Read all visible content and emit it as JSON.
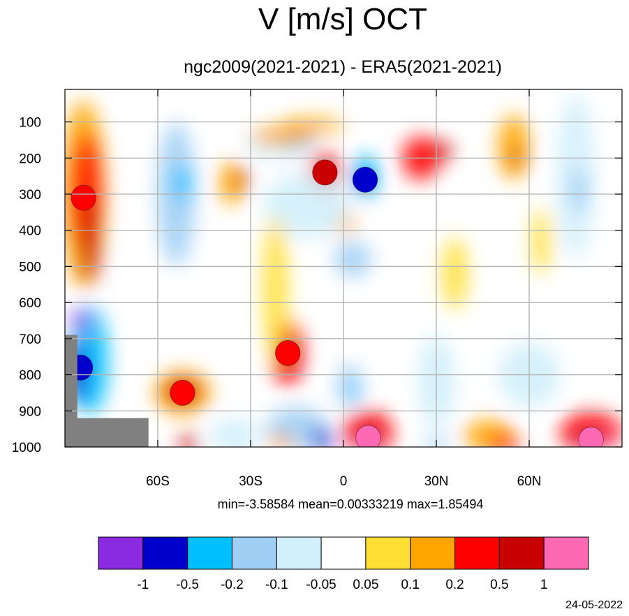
{
  "chart_data": {
    "type": "heatmap",
    "title": "V [m/s] OCT",
    "subtitle": "ngc2009(2021-2021) - ERA5(2021-2021)",
    "xlabel": "",
    "ylabel": "",
    "x_ticks": [
      {
        "value": -60,
        "label": "60S"
      },
      {
        "value": -30,
        "label": "30S"
      },
      {
        "value": 0,
        "label": "0"
      },
      {
        "value": 30,
        "label": "30N"
      },
      {
        "value": 60,
        "label": "60N"
      }
    ],
    "y_ticks": [
      100,
      200,
      300,
      400,
      500,
      600,
      700,
      800,
      900,
      1000
    ],
    "xlim": [
      -90,
      90
    ],
    "ylim": [
      1000,
      10
    ],
    "y_reversed": true,
    "grid": true,
    "stats": {
      "text": "min=-3.58584   mean=0.00333219   max=1.85494",
      "min": -3.58584,
      "mean": 0.00333219,
      "max": 1.85494
    },
    "colorbar": {
      "levels": [
        "-1",
        "-0.5",
        "-0.2",
        "-0.1",
        "-0.05",
        "0.05",
        "0.1",
        "0.2",
        "0.5",
        "1"
      ],
      "colors": [
        "#8a2be2",
        "#0000cd",
        "#00bfff",
        "#a0cff5",
        "#d2f0fb",
        "#ffffff",
        "#ffdf33",
        "#ffa500",
        "#ff0000",
        "#c80000",
        "#ff69b4"
      ]
    },
    "missing_color": "#808080",
    "features": [
      {
        "name": "SH high-latitude northward anomaly",
        "x": -84,
        "y": 310,
        "value": 0.3
      },
      {
        "name": "SH surface southward anomaly",
        "x": -85,
        "y": 780,
        "value": -0.7
      },
      {
        "name": "Equatorial upper-level northward core",
        "x": -6,
        "y": 240,
        "value": 0.6
      },
      {
        "name": "Equatorial upper-level southward core",
        "x": 7,
        "y": 260,
        "value": -0.6
      },
      {
        "name": "Boundary-layer northward maximum",
        "x": 8,
        "y": 975,
        "value": 1.2
      },
      {
        "name": "Arctic boundary-layer northward maximum",
        "x": 80,
        "y": 980,
        "value": 1.1
      },
      {
        "name": "Mid-tropospheric 20S northward band",
        "x": -18,
        "y": 740,
        "value": 0.35
      },
      {
        "name": "Near-surface 50S northward band",
        "x": -52,
        "y": 850,
        "value": 0.3
      }
    ]
  },
  "footer": {
    "date": "24-05-2022"
  }
}
